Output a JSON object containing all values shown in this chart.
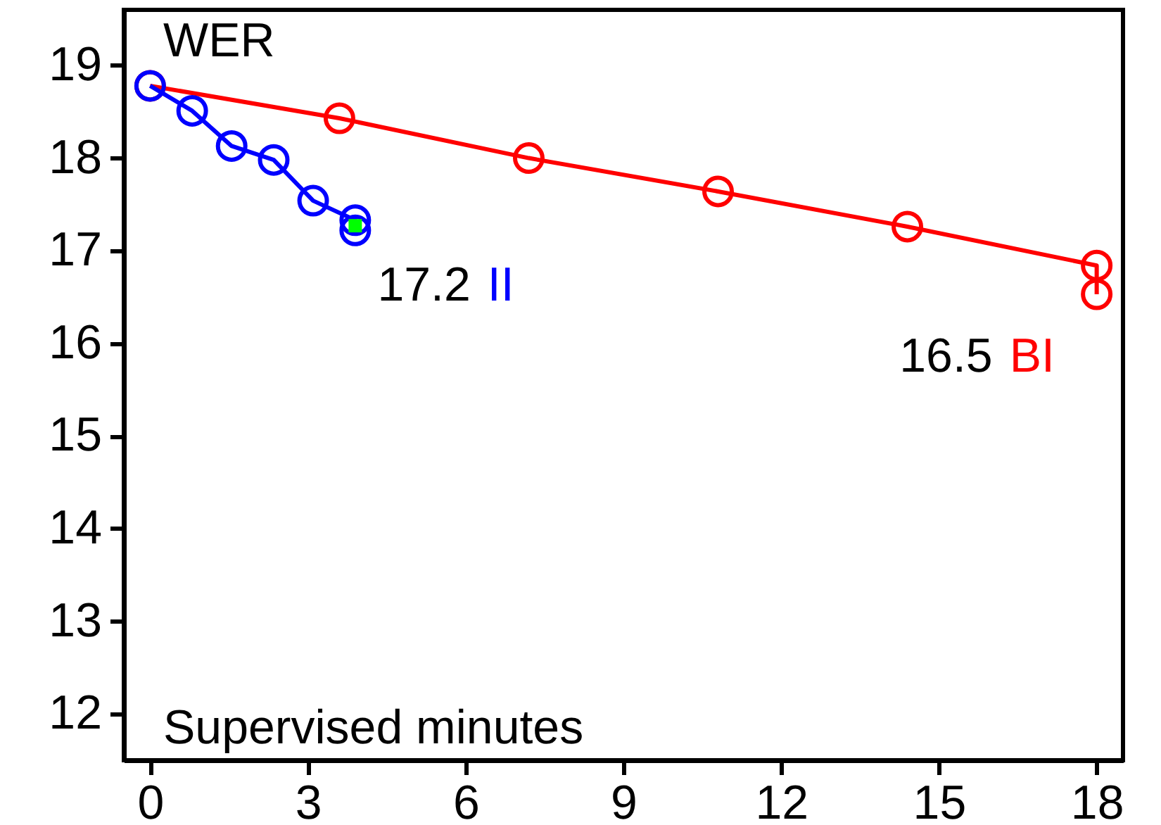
{
  "chart_data": {
    "type": "line",
    "xlabel": "Supervised minutes",
    "ylabel": "WER",
    "xlim": [
      -0.5,
      18.5
    ],
    "xticks": [
      0,
      3,
      6,
      9,
      12,
      15,
      18
    ],
    "ylim": [
      11.5,
      19.6
    ],
    "yticks": [
      12,
      13,
      14,
      15,
      16,
      17,
      18,
      19
    ],
    "series": [
      {
        "name": "BI",
        "color": "#ff0000",
        "x": [
          0,
          3.6,
          7.2,
          10.8,
          14.4,
          18,
          18
        ],
        "values": [
          18.78,
          18.43,
          18.0,
          17.64,
          17.26,
          16.84,
          16.53
        ]
      },
      {
        "name": "II",
        "color": "#0000ff",
        "x": [
          0,
          0.8,
          1.55,
          2.35,
          3.1,
          3.9,
          3.9
        ],
        "values": [
          18.78,
          18.51,
          18.13,
          17.98,
          17.54,
          17.33,
          17.22
        ]
      },
      {
        "type": "scatter",
        "color": "#00ff00",
        "marker": "square",
        "x": [
          3.9
        ],
        "values": [
          17.27
        ]
      }
    ],
    "annotations": [
      {
        "text": "16.5",
        "x": 18,
        "y": 16.53
      },
      {
        "text": "17.2",
        "x": 3.9,
        "y": 17.22
      }
    ],
    "marker": "circle",
    "line_style": "solid",
    "grid": false
  }
}
